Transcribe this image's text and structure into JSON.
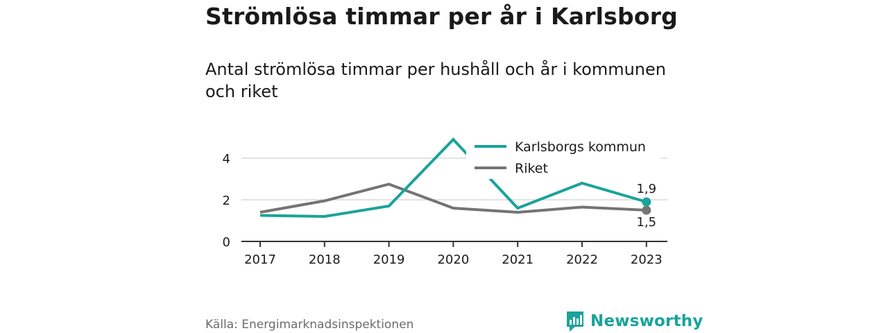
{
  "header": {
    "title": "Strömlösa timmar per år i Karlsborg",
    "subtitle": "Antal strömlösa timmar per hushåll och år i kommunen och riket"
  },
  "footer": {
    "source": "Källa: Energimarknadsinspektionen",
    "brand": "Newsworthy",
    "brand_icon": "bar-chart-logo-icon"
  },
  "colors": {
    "kommun": "#1aa39a",
    "riket": "#747474",
    "axis": "#333333",
    "grid": "#d9d9d9",
    "text": "#1a1a1a"
  },
  "chart_data": {
    "type": "line",
    "x": [
      "2017",
      "2018",
      "2019",
      "2020",
      "2021",
      "2022",
      "2023"
    ],
    "ylim": [
      0,
      5
    ],
    "yticks": [
      "0",
      "2",
      "4"
    ],
    "grid": true,
    "legend_position": "top-right",
    "series": [
      {
        "name": "Karlsborgs kommun",
        "color": "#1aa39a",
        "values": [
          1.25,
          1.2,
          1.7,
          4.9,
          1.6,
          2.8,
          1.9
        ]
      },
      {
        "name": "Riket",
        "color": "#747474",
        "values": [
          1.4,
          1.95,
          2.75,
          1.6,
          1.4,
          1.65,
          1.5
        ]
      }
    ],
    "end_labels": [
      "1,9",
      "1,5"
    ]
  }
}
